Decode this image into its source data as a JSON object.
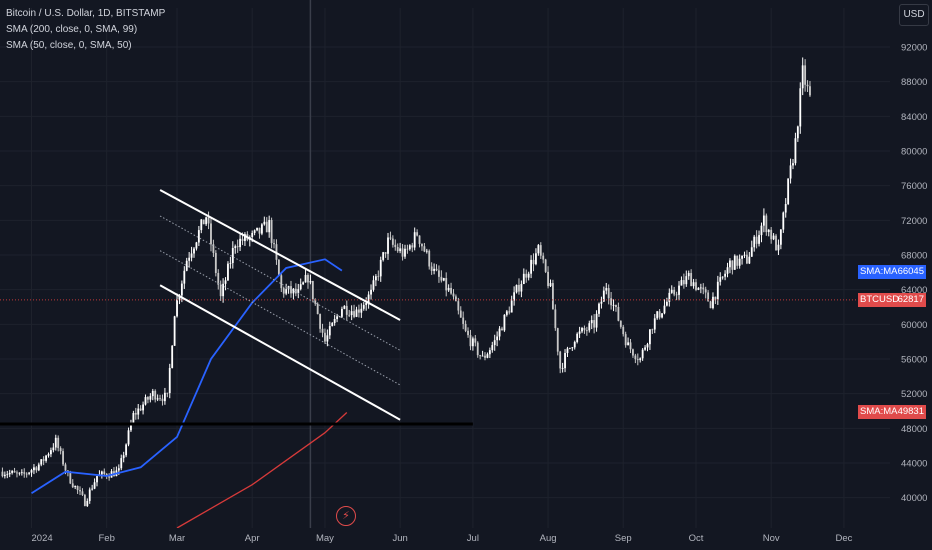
{
  "legend": {
    "title": "Bitcoin / U.S. Dollar, 1D, BITSTAMP",
    "sma200": "SMA (200, close, 0, SMA, 99)",
    "sma50": "SMA (50, close, 0, SMA, 50)"
  },
  "currency_label": "USD",
  "colors": {
    "background": "#131722",
    "candles": "#ffffff",
    "sma50": "#2962ff",
    "sma200": "#d63a3a",
    "price_line": "#c23a3a",
    "support_line": "#000000"
  },
  "price_tags": [
    {
      "name": "SMA:MA",
      "value": "66045",
      "color": "#2962ff",
      "price": 66045
    },
    {
      "name": "BTCUSD",
      "value": "62817",
      "color": "#e04b4b",
      "price": 62817
    },
    {
      "name": "SMA:MA",
      "value": "49831",
      "color": "#e04b4b",
      "price": 49831
    }
  ],
  "chart_data": {
    "type": "candlestick",
    "symbol": "BTCUSD",
    "interval": "1D",
    "x_tick_labels": [
      "2024",
      "Feb",
      "Mar",
      "Apr",
      "May",
      "Jun",
      "Jul",
      "Aug",
      "Sep",
      "Oct",
      "Nov",
      "Dec"
    ],
    "x_ticks": [
      "2024-01-01",
      "2024-02-01",
      "2024-03-01",
      "2024-04-01",
      "2024-05-01",
      "2024-06-01",
      "2024-07-01",
      "2024-08-01",
      "2024-09-01",
      "2024-10-01",
      "2024-11-01",
      "2024-12-01"
    ],
    "y_ticks": [
      40000,
      44000,
      48000,
      52000,
      56000,
      60000,
      64000,
      68000,
      72000,
      76000,
      80000,
      84000,
      88000,
      92000
    ],
    "y_range": [
      36500,
      96500
    ],
    "x_range": [
      "2023-12-19",
      "2024-12-20"
    ],
    "price_path": [
      [
        "2023-12-20",
        43000
      ],
      [
        "2023-12-28",
        42500
      ],
      [
        "2024-01-05",
        44000
      ],
      [
        "2024-01-11",
        46500
      ],
      [
        "2024-01-16",
        42500
      ],
      [
        "2024-01-23",
        39500
      ],
      [
        "2024-01-28",
        42500
      ],
      [
        "2024-02-06",
        43000
      ],
      [
        "2024-02-12",
        49500
      ],
      [
        "2024-02-20",
        52000
      ],
      [
        "2024-02-26",
        51500
      ],
      [
        "2024-02-29",
        61500
      ],
      [
        "2024-03-05",
        67500
      ],
      [
        "2024-03-13",
        72500
      ],
      [
        "2024-03-19",
        63000
      ],
      [
        "2024-03-25",
        69500
      ],
      [
        "2024-04-01",
        70000
      ],
      [
        "2024-04-08",
        71500
      ],
      [
        "2024-04-13",
        64000
      ],
      [
        "2024-04-20",
        63500
      ],
      [
        "2024-04-24",
        65500
      ],
      [
        "2024-05-01",
        58000
      ],
      [
        "2024-05-08",
        62000
      ],
      [
        "2024-05-14",
        61500
      ],
      [
        "2024-05-20",
        63500
      ],
      [
        "2024-05-27",
        69500
      ],
      [
        "2024-06-03",
        68000
      ],
      [
        "2024-06-08",
        70500
      ],
      [
        "2024-06-15",
        66000
      ],
      [
        "2024-06-22",
        63500
      ],
      [
        "2024-06-28",
        59000
      ],
      [
        "2024-07-05",
        56000
      ],
      [
        "2024-07-10",
        58000
      ],
      [
        "2024-07-20",
        64500
      ],
      [
        "2024-07-28",
        68500
      ],
      [
        "2024-08-02",
        64000
      ],
      [
        "2024-08-06",
        55000
      ],
      [
        "2024-08-12",
        58500
      ],
      [
        "2024-08-20",
        60000
      ],
      [
        "2024-08-25",
        64500
      ],
      [
        "2024-09-03",
        57500
      ],
      [
        "2024-09-08",
        56000
      ],
      [
        "2024-09-13",
        60000
      ],
      [
        "2024-09-20",
        63000
      ],
      [
        "2024-09-28",
        65500
      ],
      [
        "2024-10-07",
        62500
      ],
      [
        "2024-10-15",
        67000
      ],
      [
        "2024-10-22",
        67500
      ],
      [
        "2024-10-29",
        72000
      ],
      [
        "2024-11-04",
        68500
      ],
      [
        "2024-11-08",
        76000
      ],
      [
        "2024-11-11",
        81000
      ],
      [
        "2024-11-14",
        89000
      ],
      [
        "2024-11-17",
        86000
      ]
    ],
    "sma50": [
      [
        "2024-01-01",
        40500
      ],
      [
        "2024-01-15",
        43000
      ],
      [
        "2024-02-01",
        42500
      ],
      [
        "2024-02-15",
        43500
      ],
      [
        "2024-03-01",
        47000
      ],
      [
        "2024-03-15",
        56000
      ],
      [
        "2024-04-01",
        62500
      ],
      [
        "2024-04-15",
        66500
      ],
      [
        "2024-05-01",
        67500
      ],
      [
        "2024-05-08",
        66200
      ]
    ],
    "sma200": [
      [
        "2024-03-01",
        36500
      ],
      [
        "2024-04-01",
        41500
      ],
      [
        "2024-05-01",
        47500
      ],
      [
        "2024-05-10",
        49831
      ]
    ],
    "current_price": 62817,
    "support_level": 48500,
    "channel": {
      "upper": [
        [
          "2024-02-23",
          75500
        ],
        [
          "2024-06-01",
          60500
        ]
      ],
      "lower": [
        [
          "2024-02-23",
          64500
        ],
        [
          "2024-06-01",
          49000
        ]
      ],
      "inner_1": [
        [
          "2024-02-23",
          72500
        ],
        [
          "2024-06-01",
          57000
        ]
      ],
      "inner_2": [
        [
          "2024-02-23",
          68500
        ],
        [
          "2024-06-01",
          53000
        ]
      ]
    },
    "crosshair_date": "2024-04-25"
  }
}
